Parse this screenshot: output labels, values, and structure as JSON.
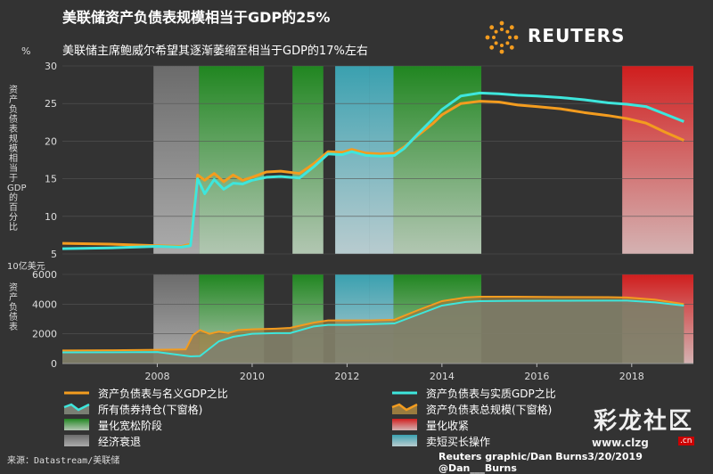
{
  "title": "美联储资产负债表规模相当于GDP的25%",
  "subtitle": "美联储主席鲍威尔希望其逐渐萎缩至相当于GDP的17%左右",
  "brand": "REUTERS",
  "source": "来源：Datastream/美联储",
  "credit": "Reuters graphic/Dan Burns3/20/2019 @Dan___Burns",
  "watermark": {
    "text": "彩龙社区",
    "url": "www.clzg",
    "tld": ".cn"
  },
  "colors": {
    "nominal": "#f39c1f",
    "real": "#3ee6dc",
    "qe": "#1f8a1f",
    "qt": "#d81c1c",
    "recession": "#777777",
    "twist": "#4bb0be"
  },
  "chart_data": [
    {
      "type": "line",
      "panel": "top",
      "ylabel": "资产负债表规模相当于GDP的百分比",
      "yunit": "%",
      "ylim": [
        5,
        30
      ],
      "yticks": [
        5,
        10,
        15,
        20,
        25,
        30
      ],
      "xlim": [
        2006.0,
        2019.3
      ],
      "series": [
        {
          "name": "资产负债表与名义GDP之比",
          "color": "#f39c1f",
          "x": [
            2006.0,
            2007.0,
            2007.5,
            2008.0,
            2008.5,
            2008.7,
            2008.85,
            2009.0,
            2009.2,
            2009.4,
            2009.6,
            2009.8,
            2010.0,
            2010.3,
            2010.6,
            2011.0,
            2011.3,
            2011.6,
            2011.9,
            2012.1,
            2012.4,
            2012.7,
            2013.0,
            2013.2,
            2013.5,
            2013.8,
            2014.0,
            2014.4,
            2014.8,
            2015.2,
            2015.6,
            2016.0,
            2016.5,
            2017.0,
            2017.5,
            2017.9,
            2018.3,
            2018.7,
            2019.1
          ],
          "y": [
            6.4,
            6.3,
            6.2,
            6.1,
            6.0,
            6.3,
            15.5,
            14.8,
            15.7,
            14.6,
            15.5,
            14.8,
            15.2,
            15.9,
            16.0,
            15.7,
            17.0,
            18.6,
            18.5,
            18.9,
            18.4,
            18.3,
            18.4,
            19.2,
            20.8,
            22.3,
            23.5,
            25.0,
            25.3,
            25.2,
            24.8,
            24.6,
            24.3,
            23.8,
            23.4,
            23.0,
            22.4,
            21.2,
            20.1
          ]
        },
        {
          "name": "资产负债表与实质GDP之比",
          "color": "#3ee6dc",
          "x": [
            2006.0,
            2007.0,
            2007.5,
            2008.0,
            2008.5,
            2008.7,
            2008.85,
            2009.0,
            2009.2,
            2009.4,
            2009.6,
            2009.8,
            2010.0,
            2010.3,
            2010.6,
            2011.0,
            2011.3,
            2011.6,
            2011.9,
            2012.1,
            2012.4,
            2012.7,
            2013.0,
            2013.2,
            2013.5,
            2013.8,
            2014.0,
            2014.4,
            2014.8,
            2015.2,
            2015.6,
            2016.0,
            2016.5,
            2017.0,
            2017.5,
            2017.9,
            2018.3,
            2018.7,
            2019.1
          ],
          "y": [
            5.7,
            5.8,
            5.9,
            6.0,
            5.9,
            6.1,
            15.0,
            13.0,
            14.9,
            13.6,
            14.4,
            14.3,
            14.8,
            15.2,
            15.3,
            15.1,
            16.6,
            18.3,
            18.2,
            18.6,
            18.1,
            18.0,
            18.1,
            19.0,
            21.0,
            22.9,
            24.2,
            26.0,
            26.4,
            26.3,
            26.1,
            26.0,
            25.8,
            25.5,
            25.1,
            24.9,
            24.6,
            23.6,
            22.6
          ]
        }
      ]
    },
    {
      "type": "area",
      "panel": "bottom",
      "ylabel": "资产负债表",
      "yunit": "10亿美元",
      "ylim": [
        0,
        6000
      ],
      "yticks": [
        0,
        2000,
        4000,
        6000
      ],
      "xlim": [
        2006.0,
        2019.3
      ],
      "xticks": [
        2008,
        2010,
        2012,
        2014,
        2016,
        2018
      ],
      "series": [
        {
          "name": "所有债券持仓(下窗格)",
          "color": "#3ee6dc",
          "fill": "#7a7f73",
          "x": [
            2006.0,
            2007.0,
            2008.0,
            2008.7,
            2008.9,
            2009.3,
            2009.6,
            2010.0,
            2010.5,
            2010.8,
            2011.3,
            2011.6,
            2012.0,
            2012.5,
            2013.0,
            2013.5,
            2014.0,
            2014.5,
            2014.8,
            2015.5,
            2016.5,
            2017.5,
            2017.9,
            2018.5,
            2019.1
          ],
          "y": [
            750,
            760,
            770,
            480,
            500,
            1500,
            1800,
            2000,
            2050,
            2050,
            2500,
            2600,
            2600,
            2650,
            2700,
            3300,
            3900,
            4150,
            4200,
            4220,
            4230,
            4240,
            4240,
            4120,
            3900
          ]
        },
        {
          "name": "资产负债表总规模(下窗格)",
          "color": "#f39c1f",
          "fill": "#9a7b3f",
          "x": [
            2006.0,
            2007.0,
            2008.0,
            2008.6,
            2008.75,
            2008.9,
            2009.1,
            2009.3,
            2009.5,
            2009.7,
            2010.0,
            2010.5,
            2010.8,
            2011.3,
            2011.6,
            2012.0,
            2012.5,
            2013.0,
            2013.5,
            2014.0,
            2014.5,
            2014.8,
            2015.5,
            2016.5,
            2017.5,
            2017.9,
            2018.5,
            2019.1
          ],
          "y": [
            880,
            890,
            920,
            950,
            1900,
            2250,
            2000,
            2150,
            2050,
            2250,
            2300,
            2350,
            2400,
            2750,
            2900,
            2900,
            2900,
            2950,
            3600,
            4200,
            4450,
            4500,
            4500,
            4480,
            4470,
            4450,
            4300,
            4000
          ]
        }
      ]
    }
  ],
  "bands": [
    {
      "label": "经济衰退",
      "kind": "recession",
      "from": 2007.92,
      "to": 2008.88
    },
    {
      "label": "量化宽松阶段",
      "kind": "qe",
      "from": 2008.88,
      "to": 2009.4
    },
    {
      "label": "量化宽松阶段",
      "kind": "qe",
      "from": 2009.4,
      "to": 2010.25
    },
    {
      "label": "量化宽松阶段",
      "kind": "qe",
      "from": 2010.85,
      "to": 2011.5
    },
    {
      "label": "卖短买长操作",
      "kind": "twist",
      "from": 2011.75,
      "to": 2012.48
    },
    {
      "label": "卖短买长操作",
      "kind": "twist",
      "from": 2012.48,
      "to": 2012.98
    },
    {
      "label": "量化宽松阶段",
      "kind": "qe",
      "from": 2012.98,
      "to": 2014.83
    },
    {
      "label": "量化收紧",
      "kind": "qt",
      "from": 2017.8,
      "to": 2019.3
    }
  ],
  "legend": [
    {
      "label": "资产负债表与名义GDP之比",
      "swatch": "line-orange"
    },
    {
      "label": "资产负债表与实质GDP之比",
      "swatch": "line-cyan"
    },
    {
      "label": "所有债券持仓(下窗格)",
      "swatch": "area-cyan"
    },
    {
      "label": "资产负债表总规模(下窗格)",
      "swatch": "area-orange"
    },
    {
      "label": "量化宽松阶段",
      "swatch": "green"
    },
    {
      "label": "量化收紧",
      "swatch": "red"
    },
    {
      "label": "经济衰退",
      "swatch": "gray"
    },
    {
      "label": "卖短买长操作",
      "swatch": "teal"
    }
  ]
}
